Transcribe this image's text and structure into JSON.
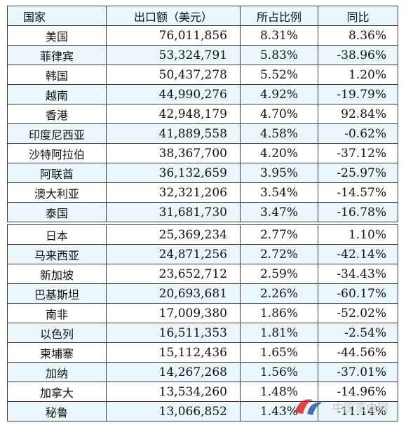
{
  "headers": [
    "国家",
    "出口额（美元）",
    "所占比例",
    "同比"
  ],
  "top_rows": [
    {
      "country": "美国",
      "amount": "76,011,856",
      "share": "8.31%",
      "yoy": "8.36%"
    },
    {
      "country": "菲律宾",
      "amount": "53,324,791",
      "share": "5.83%",
      "yoy": "-38.96%"
    },
    {
      "country": "韩国",
      "amount": "50,437,278",
      "share": "5.52%",
      "yoy": "1.20%"
    },
    {
      "country": "越南",
      "amount": "44,990,276",
      "share": "4.92%",
      "yoy": "-19.79%"
    },
    {
      "country": "香港",
      "amount": "42,948,179",
      "share": "4.70%",
      "yoy": "92.84%"
    },
    {
      "country": "印度尼西亚",
      "amount": "41,889,558",
      "share": "4.58%",
      "yoy": "-0.62%"
    },
    {
      "country": "沙特阿拉伯",
      "amount": "38,367,700",
      "share": "4.20%",
      "yoy": "-37.12%"
    },
    {
      "country": "阿联酋",
      "amount": "36,132,659",
      "share": "3.95%",
      "yoy": "-25.97%"
    },
    {
      "country": "澳大利亚",
      "amount": "32,321,206",
      "share": "3.54%",
      "yoy": "-14.57%"
    },
    {
      "country": "泰国",
      "amount": "31,681,730",
      "share": "3.47%",
      "yoy": "-16.78%"
    }
  ],
  "bottom_rows": [
    {
      "country": "日本",
      "amount": "25,369,234",
      "share": "2.77%",
      "yoy": "1.10%"
    },
    {
      "country": "马来西亚",
      "amount": "24,871,256",
      "share": "2.72%",
      "yoy": "-42.14%"
    },
    {
      "country": "新加坡",
      "amount": "23,652,712",
      "share": "2.59%",
      "yoy": "-34.43%"
    },
    {
      "country": "巴基斯坦",
      "amount": "20,693,681",
      "share": "2.26%",
      "yoy": "-60.17%"
    },
    {
      "country": "南非",
      "amount": "17,009,380",
      "share": "1.86%",
      "yoy": "-52.02%"
    },
    {
      "country": "以色列",
      "amount": "16,511,353",
      "share": "1.81%",
      "yoy": "-2.54%"
    },
    {
      "country": "柬埔寨",
      "amount": "15,112,436",
      "share": "1.65%",
      "yoy": "-44.56%"
    },
    {
      "country": "加纳",
      "amount": "14,267,268",
      "share": "1.56%",
      "yoy": "-37.01%"
    },
    {
      "country": "加拿大",
      "amount": "13,534,260",
      "share": "1.48%",
      "yoy": "-14.96%"
    },
    {
      "country": "秘鲁",
      "amount": "13,066,852",
      "share": "1.43%",
      "yoy": "-11.14%"
    }
  ],
  "watermark_text": "中国家电网",
  "colors": {
    "row_alt": "#e9f6fb",
    "border": "#3a3a3a",
    "logo_red": "#d9232d",
    "logo_blue": "#1f4f9c"
  }
}
